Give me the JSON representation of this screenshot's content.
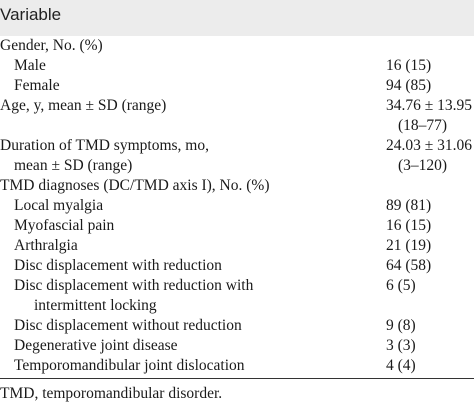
{
  "table": {
    "header": "Variable",
    "gender": {
      "label": "Gender, No. (%)",
      "male_label": "Male",
      "male_value": "16 (15)",
      "female_label": "Female",
      "female_value": "94 (85)"
    },
    "age": {
      "label": "Age, y, mean ± SD (range)",
      "value": "34.76 ± 13.95",
      "range": "(18–77)"
    },
    "duration": {
      "label_line1": "Duration of TMD symptoms, mo,",
      "label_line2": "mean ± SD (range)",
      "value": "24.03 ± 31.06",
      "range": "(3–120)"
    },
    "diagnoses": {
      "label": "TMD diagnoses (DC/TMD axis I), No. (%)",
      "items": [
        {
          "label": "Local myalgia",
          "value": "89 (81)"
        },
        {
          "label": "Myofascial pain",
          "value": "16 (15)"
        },
        {
          "label": "Arthralgia",
          "value": "21 (19)"
        },
        {
          "label": "Disc displacement with reduction",
          "value": "64 (58)"
        },
        {
          "label": "Disc displacement with reduction with",
          "label2": "intermittent locking",
          "value": "6 (5)"
        },
        {
          "label": "Disc displacement without reduction",
          "value": "9 (8)"
        },
        {
          "label": "Degenerative joint disease",
          "value": "3 (3)"
        },
        {
          "label": "Temporomandibular joint dislocation",
          "value": "4 (4)"
        }
      ]
    },
    "footnote": "TMD, temporomandibular disorder."
  }
}
